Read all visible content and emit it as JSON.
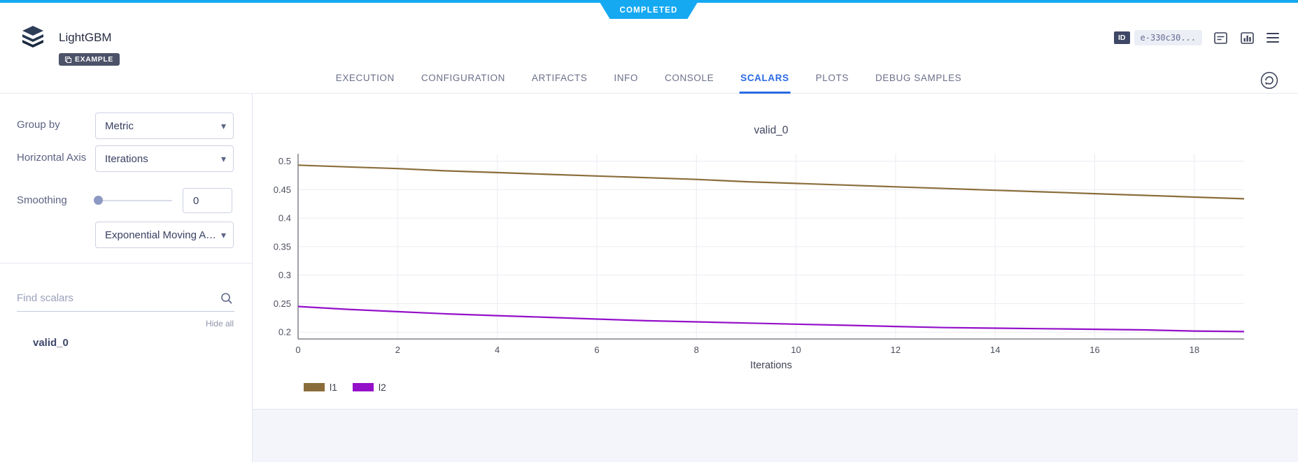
{
  "status": {
    "label": "COMPLETED"
  },
  "header": {
    "title": "LightGBM",
    "example_badge": "EXAMPLE",
    "id_chip": "ID",
    "id_value": "e-330c30..."
  },
  "tabs": [
    {
      "label": "EXECUTION"
    },
    {
      "label": "CONFIGURATION"
    },
    {
      "label": "ARTIFACTS"
    },
    {
      "label": "INFO"
    },
    {
      "label": "CONSOLE"
    },
    {
      "label": "SCALARS"
    },
    {
      "label": "PLOTS"
    },
    {
      "label": "DEBUG SAMPLES"
    }
  ],
  "active_tab": "SCALARS",
  "sidebar": {
    "group_by": {
      "label": "Group by",
      "value": "Metric"
    },
    "horizontal_axis": {
      "label": "Horizontal Axis",
      "value": "Iterations"
    },
    "smoothing": {
      "label": "Smoothing",
      "value": "0",
      "method": "Exponential Moving Ave..."
    },
    "search": {
      "placeholder": "Find scalars"
    },
    "hide_all": "Hide all",
    "scalars": [
      "valid_0"
    ]
  },
  "icons": {
    "caret_down": "▾"
  },
  "colors": {
    "accent": "#15a9f2",
    "active_tab": "#2a6ae4",
    "series_l1": "#8a6d3b",
    "series_l2": "#9410c9"
  },
  "chart_data": {
    "type": "line",
    "title": "valid_0",
    "xlabel": "Iterations",
    "x": [
      0,
      1,
      2,
      3,
      4,
      5,
      6,
      7,
      8,
      9,
      10,
      11,
      12,
      13,
      14,
      15,
      16,
      17,
      18,
      19
    ],
    "series": [
      {
        "name": "l1",
        "color": "#8a6d3b",
        "values": [
          0.493,
          0.49,
          0.487,
          0.483,
          0.48,
          0.477,
          0.474,
          0.471,
          0.468,
          0.464,
          0.461,
          0.458,
          0.455,
          0.452,
          0.449,
          0.446,
          0.443,
          0.44,
          0.437,
          0.434
        ]
      },
      {
        "name": "l2",
        "color": "#9410c9",
        "values": [
          0.245,
          0.24,
          0.236,
          0.232,
          0.229,
          0.226,
          0.223,
          0.22,
          0.218,
          0.216,
          0.214,
          0.212,
          0.21,
          0.208,
          0.207,
          0.206,
          0.205,
          0.204,
          0.202,
          0.201
        ]
      }
    ],
    "xlim": [
      0,
      19
    ],
    "ylim": [
      0.188,
      0.513
    ],
    "xticks": [
      0,
      2,
      4,
      6,
      8,
      10,
      12,
      14,
      16,
      18
    ],
    "yticks": [
      0.2,
      0.25,
      0.3,
      0.35,
      0.4,
      0.45,
      0.5
    ],
    "grid": true,
    "legend_position": "bottom-left"
  }
}
